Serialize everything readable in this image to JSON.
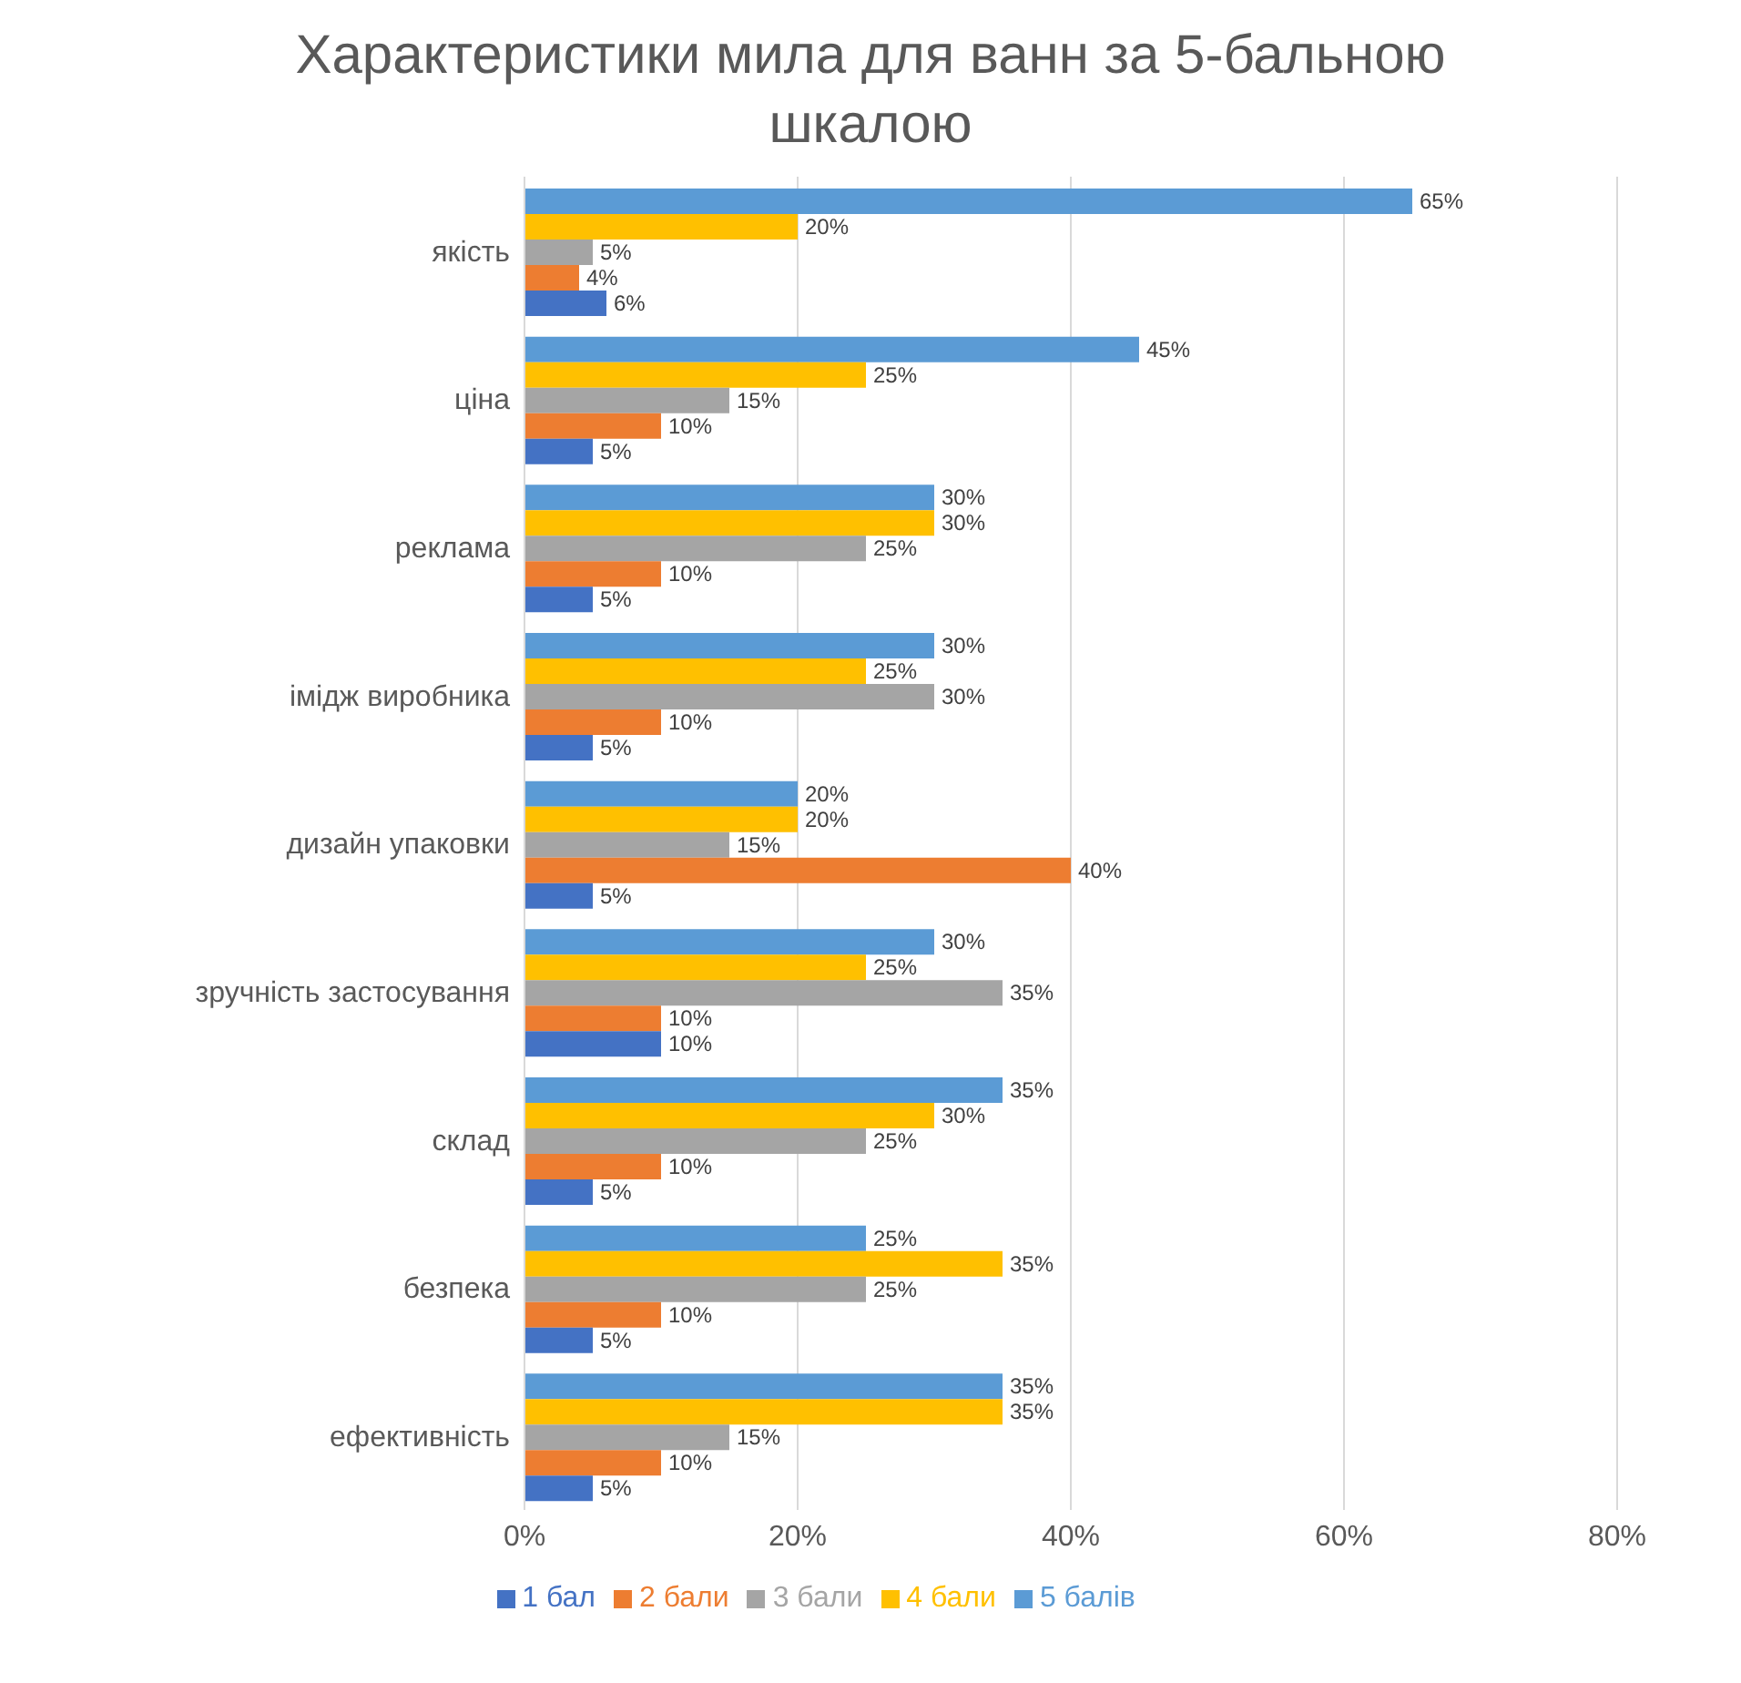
{
  "chart_data": {
    "type": "bar",
    "orientation": "horizontal",
    "title": "Характеристики мила для ванн за 5-бальною шкалою",
    "categories": [
      "якість",
      "ціна",
      "реклама",
      "імідж виробника",
      "дизайн упаковки",
      "зручність застосування",
      "склад",
      "безпека",
      "ефективність"
    ],
    "series": [
      {
        "name": "5 балів",
        "color": "#5b9bd5",
        "values": [
          65,
          45,
          30,
          30,
          20,
          30,
          35,
          25,
          35
        ],
        "value_labels": [
          "65%",
          "45%",
          "30%",
          "30%",
          "20%",
          "30%",
          "35%",
          "25%",
          "35%"
        ]
      },
      {
        "name": "4 бали",
        "color": "#ffc000",
        "values": [
          20,
          25,
          30,
          25,
          20,
          25,
          30,
          35,
          35
        ],
        "value_labels": [
          "20%",
          "25%",
          "30%",
          "25%",
          "20%",
          "25%",
          "30%",
          "35%",
          "35%"
        ]
      },
      {
        "name": "3 бали",
        "color": "#a5a5a5",
        "values": [
          5,
          15,
          25,
          30,
          15,
          35,
          25,
          25,
          15
        ],
        "value_labels": [
          "5%",
          "15%",
          "25%",
          "30%",
          "15%",
          "35%",
          "25%",
          "25%",
          "15%"
        ]
      },
      {
        "name": "2 бали",
        "color": "#ed7d31",
        "values": [
          4,
          10,
          10,
          10,
          40,
          10,
          10,
          10,
          10
        ],
        "value_labels": [
          "4%",
          "10%",
          "10%",
          "10%",
          "40%",
          "10%",
          "10%",
          "10%",
          "10%"
        ]
      },
      {
        "name": "1 бал",
        "color": "#4472c4",
        "values": [
          6,
          5,
          5,
          5,
          5,
          10,
          5,
          5,
          5
        ],
        "value_labels": [
          "6%",
          "5%",
          "5%",
          "5%",
          "5%",
          "10%",
          "5%",
          "5%",
          "5%"
        ]
      }
    ],
    "xlim": [
      0,
      80
    ],
    "xticks": [
      {
        "value": 0,
        "label": "0%"
      },
      {
        "value": 20,
        "label": "20%"
      },
      {
        "value": 40,
        "label": "40%"
      },
      {
        "value": 60,
        "label": "60%"
      },
      {
        "value": 80,
        "label": "80%"
      }
    ],
    "grid": "x",
    "legend": "bottom"
  }
}
